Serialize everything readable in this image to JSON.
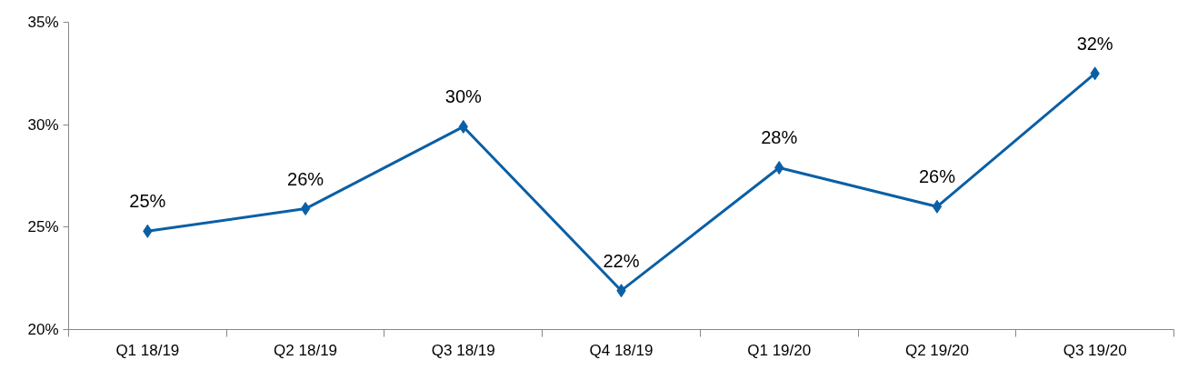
{
  "chart_data": {
    "type": "line",
    "categories": [
      "Q1 18/19",
      "Q2 18/19",
      "Q3 18/19",
      "Q4 18/19",
      "Q1 19/20",
      "Q2 19/20",
      "Q3 19/20"
    ],
    "series": [
      {
        "color": "#0b5fa5",
        "values": [
          24.8,
          25.9,
          29.9,
          21.9,
          27.9,
          26.0,
          32.5
        ],
        "value_labels": [
          "25%",
          "26%",
          "30%",
          "22%",
          "28%",
          "26%",
          "32%"
        ]
      }
    ],
    "ylim": [
      20,
      35
    ],
    "yticks": [
      {
        "value": 20,
        "label": "20%"
      },
      {
        "value": 25,
        "label": "25%"
      },
      {
        "value": 30,
        "label": "30%"
      },
      {
        "value": 35,
        "label": "35%"
      }
    ],
    "grid": false,
    "marker": "diamond",
    "line_style": "solid"
  }
}
